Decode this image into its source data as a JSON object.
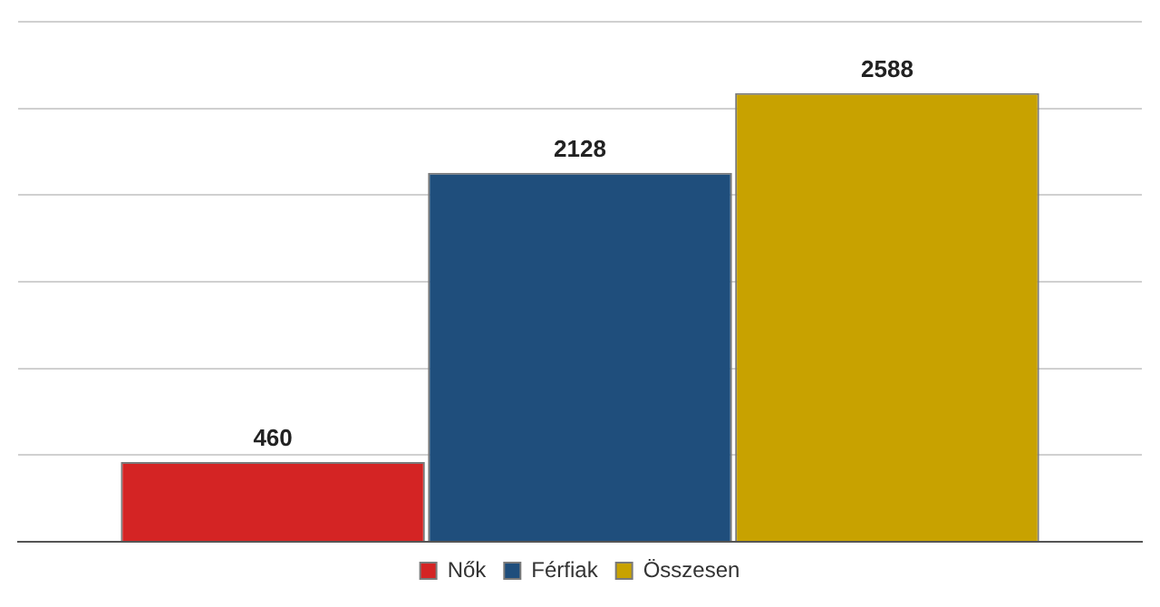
{
  "chart_data": {
    "type": "bar",
    "categories": [
      null
    ],
    "series": [
      {
        "name": "Nők",
        "color": "#d42424",
        "values": [
          460
        ]
      },
      {
        "name": "Férfiak",
        "color": "#1f4e7c",
        "values": [
          2128
        ]
      },
      {
        "name": "Összesen",
        "color": "#c8a200",
        "values": [
          2588
        ]
      }
    ],
    "ylim": [
      0,
      3000
    ],
    "grid": "y",
    "legend": "bottom",
    "data_labels": true
  }
}
